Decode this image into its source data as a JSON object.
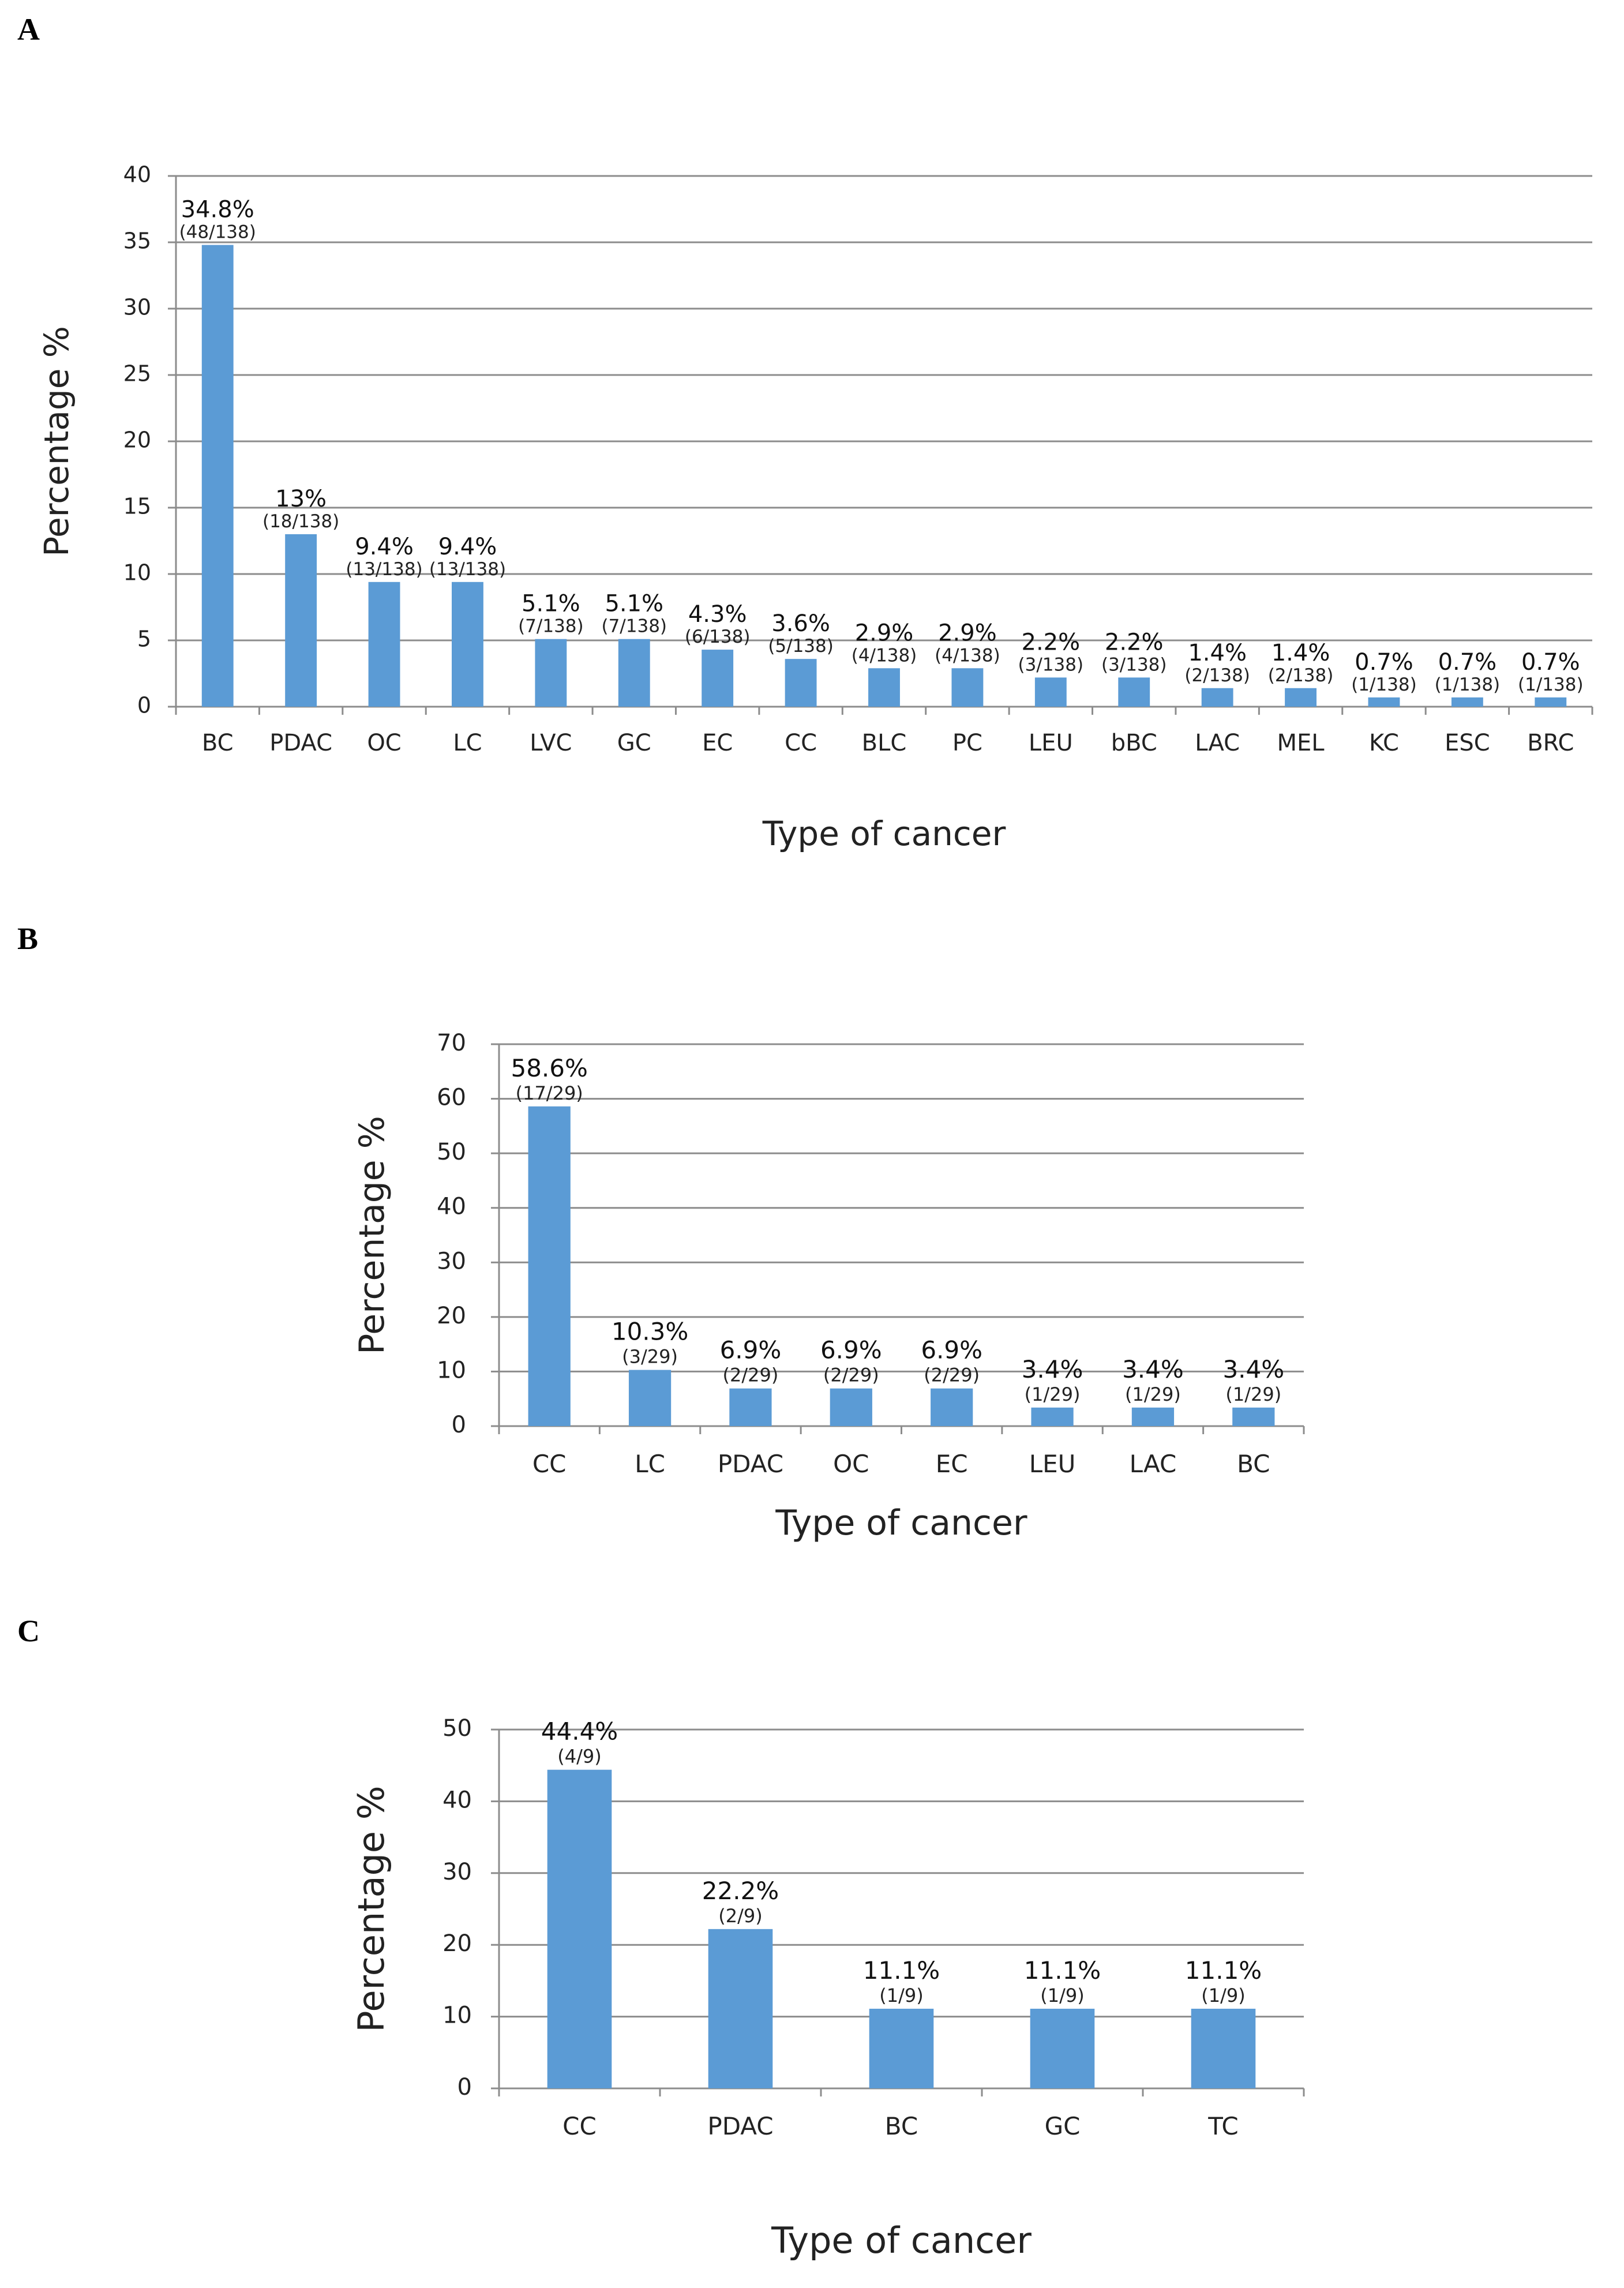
{
  "chart_data": [
    {
      "panel": "A",
      "type": "bar",
      "title": "",
      "xlabel": "Type of cancer",
      "ylabel": "Percentage %",
      "ylim": [
        0,
        40
      ],
      "yticks": [
        0,
        5,
        10,
        15,
        20,
        25,
        30,
        35,
        40
      ],
      "grid": true,
      "categories": [
        "BC",
        "PDAC",
        "OC",
        "LC",
        "LVC",
        "GC",
        "EC",
        "CC",
        "BLC",
        "PC",
        "LEU",
        "bBC",
        "LAC",
        "MEL",
        "KC",
        "ESC",
        "BRC"
      ],
      "values": [
        34.8,
        13,
        9.4,
        9.4,
        5.1,
        5.1,
        4.3,
        3.6,
        2.9,
        2.9,
        2.2,
        2.2,
        1.4,
        1.4,
        0.7,
        0.7,
        0.7
      ],
      "value_labels": [
        "34.8%",
        "13%",
        "9.4%",
        "9.4%",
        "5.1%",
        "5.1%",
        "4.3%",
        "3.6%",
        "2.9%",
        "2.9%",
        "2.2%",
        "2.2%",
        "1.4%",
        "1.4%",
        "0.7%",
        "0.7%",
        "0.7%"
      ],
      "count_labels": [
        "(48/138)",
        "(18/138)",
        "(13/138)",
        "(13/138)",
        "(7/138)",
        "(7/138)",
        "(6/138)",
        "(5/138)",
        "(4/138)",
        "(4/138)",
        "(3/138)",
        "(3/138)",
        "(2/138)",
        "(2/138)",
        "(1/138)",
        "(1/138)",
        "(1/138)"
      ],
      "bar_color": "#5b9bd5"
    },
    {
      "panel": "B",
      "type": "bar",
      "title": "",
      "xlabel": "Type of cancer",
      "ylabel": "Percentage %",
      "ylim": [
        0,
        70
      ],
      "yticks": [
        0,
        10,
        20,
        30,
        40,
        50,
        60,
        70
      ],
      "grid": true,
      "categories": [
        "CC",
        "LC",
        "PDAC",
        "OC",
        "EC",
        "LEU",
        "LAC",
        "BC"
      ],
      "values": [
        58.6,
        10.3,
        6.9,
        6.9,
        6.9,
        3.4,
        3.4,
        3.4
      ],
      "value_labels": [
        "58.6%",
        "10.3%",
        "6.9%",
        "6.9%",
        "6.9%",
        "3.4%",
        "3.4%",
        "3.4%"
      ],
      "count_labels": [
        "(17/29)",
        "(3/29)",
        "(2/29)",
        "(2/29)",
        "(2/29)",
        "(1/29)",
        "(1/29)",
        "(1/29)"
      ],
      "bar_color": "#5b9bd5"
    },
    {
      "panel": "C",
      "type": "bar",
      "title": "",
      "xlabel": "Type of cancer",
      "ylabel": "Percentage %",
      "ylim": [
        0,
        50
      ],
      "yticks": [
        0,
        10,
        20,
        30,
        40,
        50
      ],
      "grid": true,
      "categories": [
        "CC",
        "PDAC",
        "BC",
        "GC",
        "TC"
      ],
      "values": [
        44.4,
        22.2,
        11.1,
        11.1,
        11.1
      ],
      "value_labels": [
        "44.4%",
        "22.2%",
        "11.1%",
        "11.1%",
        "11.1%"
      ],
      "count_labels": [
        "(4/9)",
        "(2/9)",
        "(1/9)",
        "(1/9)",
        "(1/9)"
      ],
      "bar_color": "#5b9bd5"
    }
  ]
}
